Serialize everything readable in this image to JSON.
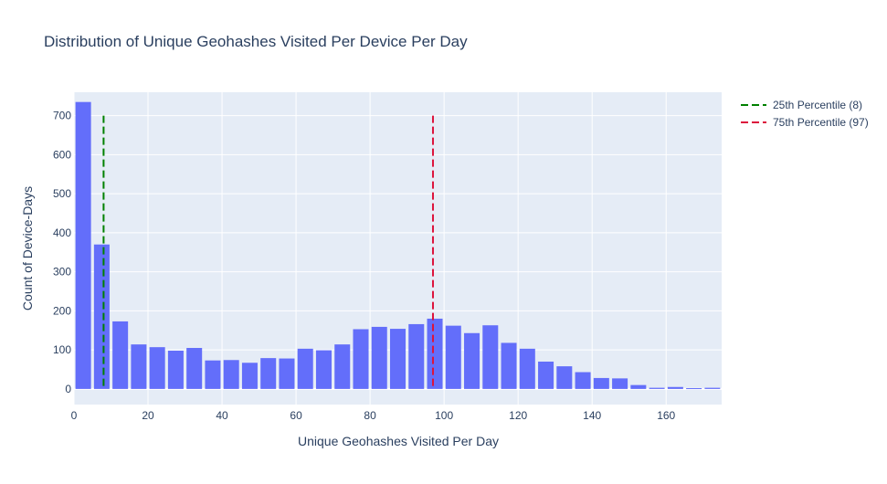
{
  "chart_data": {
    "type": "bar",
    "title": "Distribution of Unique Geohashes Visited Per Device Per Day",
    "xlabel": "Unique Geohashes Visited Per Day",
    "ylabel": "Count of Device-Days",
    "xlim": [
      0,
      175
    ],
    "ylim": [
      -40,
      760
    ],
    "bin_width": 5,
    "bar_color": "#636efa",
    "plot_bg": "#e5ecf6",
    "grid": true,
    "x_ticks": [
      0,
      20,
      40,
      60,
      80,
      100,
      120,
      140,
      160
    ],
    "y_ticks": [
      0,
      100,
      200,
      300,
      400,
      500,
      600,
      700
    ],
    "bin_starts": [
      0,
      5,
      10,
      15,
      20,
      25,
      30,
      35,
      40,
      45,
      50,
      55,
      60,
      65,
      70,
      75,
      80,
      85,
      90,
      95,
      100,
      105,
      110,
      115,
      120,
      125,
      130,
      135,
      140,
      145,
      150,
      155,
      160,
      165,
      170
    ],
    "values": [
      735,
      370,
      173,
      114,
      107,
      98,
      105,
      73,
      74,
      67,
      79,
      78,
      103,
      99,
      114,
      153,
      159,
      154,
      166,
      180,
      162,
      143,
      163,
      118,
      103,
      70,
      58,
      43,
      28,
      27,
      10,
      3,
      5,
      2,
      3
    ],
    "lines": [
      {
        "name": "25th Percentile (8)",
        "x": 8,
        "y_range": [
          0,
          700
        ],
        "color": "#008000",
        "dash": "dash"
      },
      {
        "name": "75th Percentile (97)",
        "x": 97,
        "y_range": [
          0,
          700
        ],
        "color": "#dc143c",
        "dash": "dash"
      }
    ],
    "legend_position": "top-right"
  }
}
